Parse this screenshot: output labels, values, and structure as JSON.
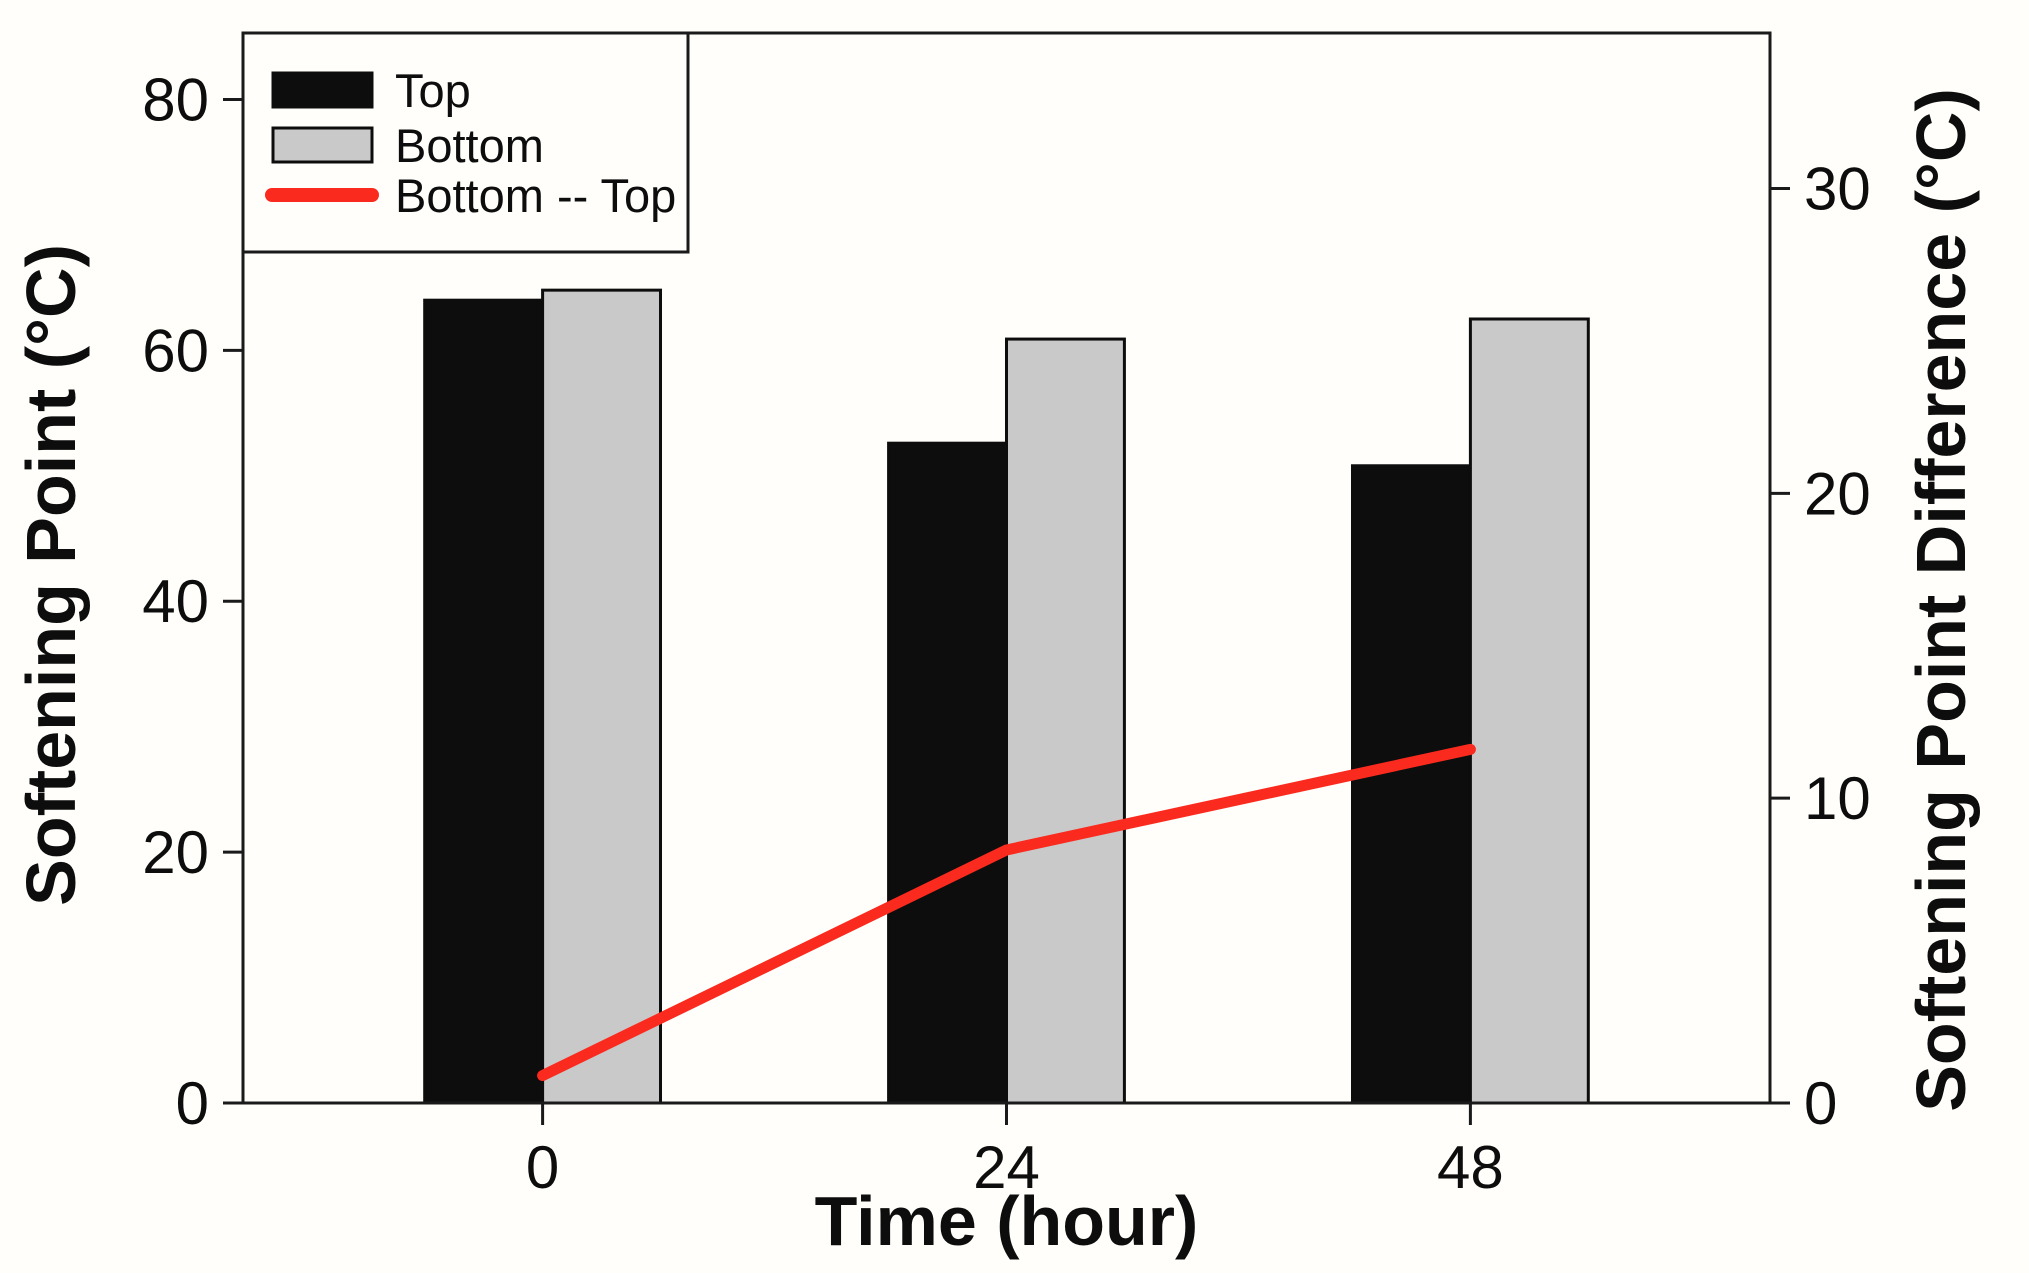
{
  "chart_data": {
    "type": "bar",
    "subtype": "grouped-bars-with-line-dual-y-axis",
    "categories": [
      0,
      24,
      48
    ],
    "x_tick_labels": [
      "0",
      "24",
      "48"
    ],
    "series": [
      {
        "name": "Top",
        "type": "bar",
        "axis": "left",
        "color": "#0d0d0d",
        "values": [
          64.0,
          52.6,
          50.8
        ]
      },
      {
        "name": "Bottom",
        "type": "bar",
        "axis": "left",
        "color": "#c9c9c9",
        "values": [
          64.8,
          60.9,
          62.5
        ]
      },
      {
        "name": "Bottom -- Top",
        "type": "line",
        "axis": "right",
        "color": "#fa2a1e",
        "values": [
          0.9,
          8.3,
          11.6
        ]
      }
    ],
    "title": "",
    "xlabel": "Time (hour)",
    "ylabel": "Softening Point (°C)",
    "y2label": "Softening Point Difference (°C)",
    "xlim": [
      -15.5,
      63.5
    ],
    "ylim": [
      0,
      85.3
    ],
    "y2lim": [
      0,
      35.1
    ],
    "y_ticks": [
      0,
      20,
      40,
      60,
      80
    ],
    "y_tick_labels": [
      "0",
      "20",
      "40",
      "60",
      "80"
    ],
    "y2_ticks": [
      0,
      10,
      20,
      30
    ],
    "y2_tick_labels": [
      "0",
      "10",
      "20",
      "30"
    ],
    "x_ticks": [
      0,
      24,
      48
    ],
    "grid": false,
    "legend": {
      "position": "top-left",
      "items": [
        {
          "label": "Top",
          "swatch": "filled-bar",
          "color": "#0d0d0d"
        },
        {
          "label": "Bottom",
          "swatch": "outlined-bar",
          "color": "#c9c9c9"
        },
        {
          "label": "Bottom -- Top",
          "swatch": "line",
          "color": "#fa2a1e"
        }
      ]
    },
    "colors": {
      "axis": "#1a1a1a",
      "background": "#fffefa",
      "bar_top": "#0d0d0d",
      "bar_bottom": "#c9c9c9",
      "bar_outline": "#0d0d0d",
      "difference_line": "#fa2a1e"
    }
  }
}
